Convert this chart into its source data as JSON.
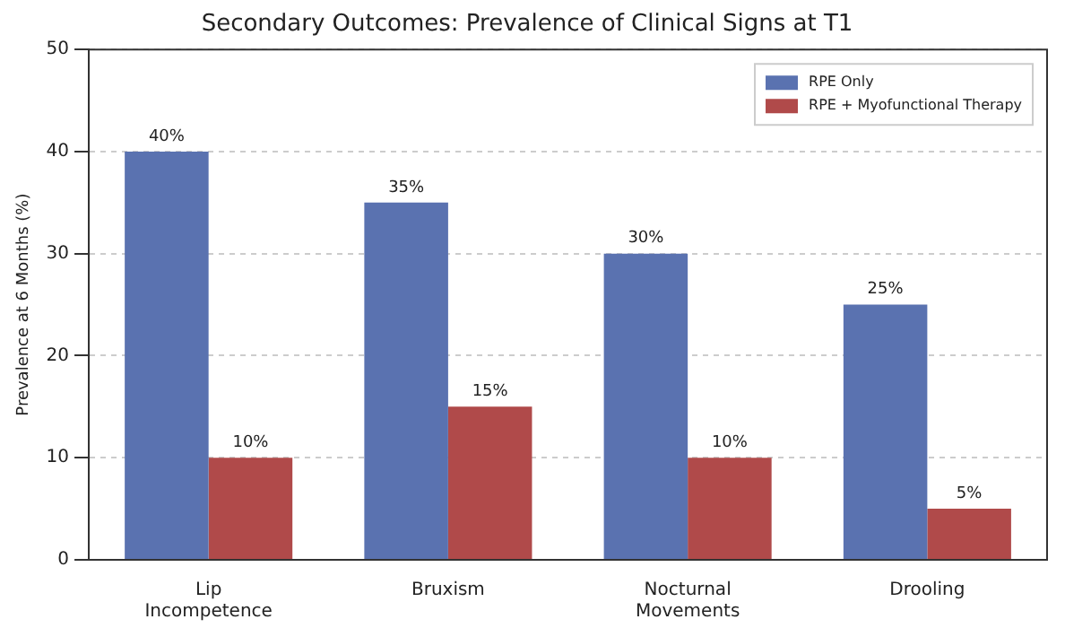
{
  "chart_data": {
    "type": "bar",
    "title": "Secondary Outcomes: Prevalence of Clinical Signs at T1",
    "ylabel": "Prevalence at 6 Months (%)",
    "categories": [
      "Lip Incompetence",
      "Bruxism",
      "Nocturnal Movements",
      "Drooling"
    ],
    "series": [
      {
        "name": "RPE Only",
        "color": "#5a72b0",
        "values": [
          40,
          35,
          30,
          25
        ],
        "value_labels": [
          "40%",
          "35%",
          "30%",
          "25%"
        ]
      },
      {
        "name": "RPE + Myofunctional Therapy",
        "color": "#b04a4a",
        "values": [
          10,
          15,
          10,
          5
        ],
        "value_labels": [
          "10%",
          "15%",
          "10%",
          "5%"
        ]
      }
    ],
    "ylim": [
      0,
      50
    ],
    "yticks": [
      0,
      10,
      20,
      30,
      40,
      50
    ],
    "grid": "y",
    "legend": "top right"
  }
}
